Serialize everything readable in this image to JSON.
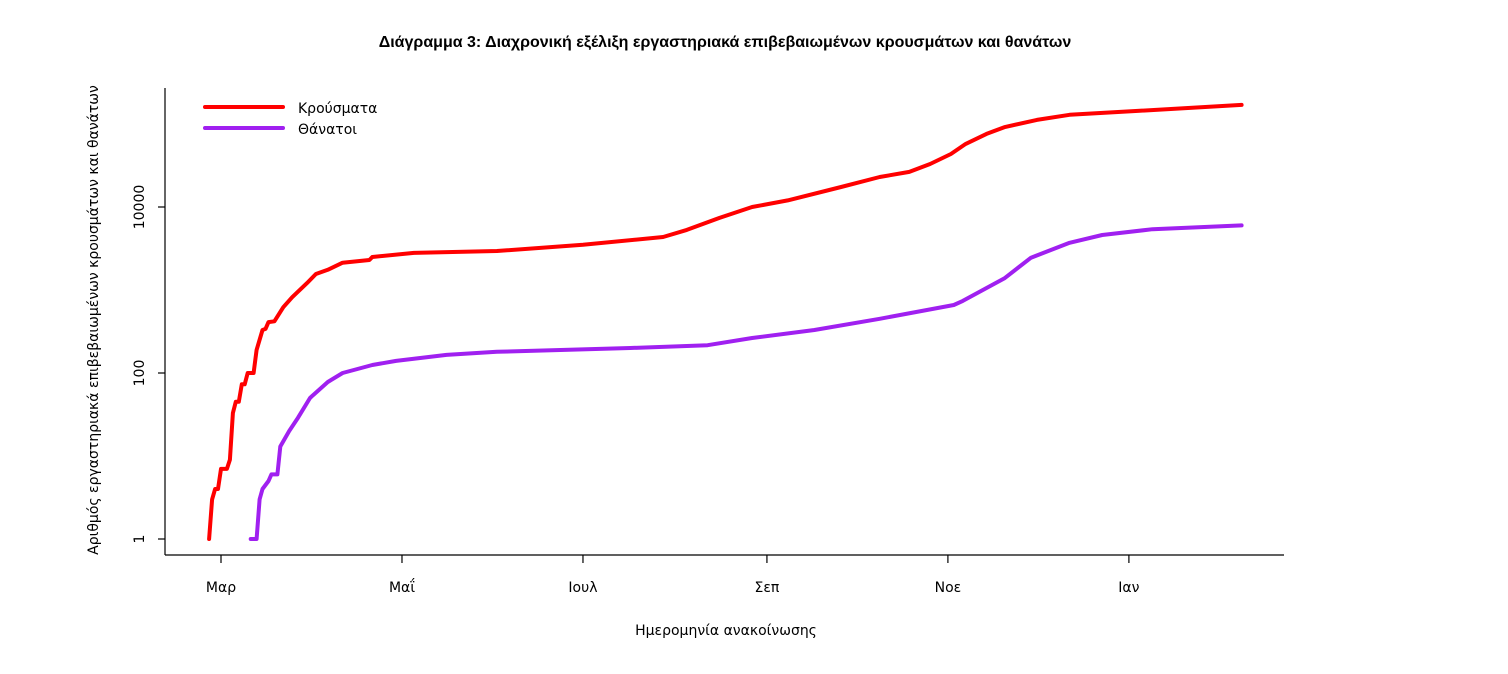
{
  "chart_data": {
    "type": "line",
    "title": "Διάγραμμα 3: Διαχρονική εξέλιξη εργαστηριακά επιβεβαιωμένων κρουσμάτων και θανάτων",
    "xlabel": "Ημερομηνία ανακοίνωσης",
    "ylabel": "Αριθμός εργαστηριακά επιβεβαιωμένων κρουσμάτων και θανάτων",
    "yscale": "log",
    "ylim": [
      0.65,
      270000
    ],
    "xlim": [
      "2020-02-11",
      "2021-02-22"
    ],
    "grid": false,
    "legend_position": "top-left",
    "y_ticks": [
      {
        "value": 1,
        "label": "1"
      },
      {
        "value": 100,
        "label": "100"
      },
      {
        "value": 10000,
        "label": "10000"
      }
    ],
    "x_ticks": [
      {
        "date": "2020-03-01",
        "label": "Μαρ"
      },
      {
        "date": "2020-05-01",
        "label": "Μαΐ"
      },
      {
        "date": "2020-07-01",
        "label": "Ιουλ"
      },
      {
        "date": "2020-09-01",
        "label": "Σεπ"
      },
      {
        "date": "2020-11-01",
        "label": "Νοε"
      },
      {
        "date": "2021-01-01",
        "label": "Ιαν"
      }
    ],
    "series": [
      {
        "name": "Κρούσματα",
        "color": "#ff0000",
        "points": [
          [
            "2020-02-26",
            1
          ],
          [
            "2020-02-27",
            3
          ],
          [
            "2020-02-28",
            4
          ],
          [
            "2020-02-29",
            4
          ],
          [
            "2020-03-01",
            7
          ],
          [
            "2020-03-03",
            7
          ],
          [
            "2020-03-04",
            9
          ],
          [
            "2020-03-05",
            33
          ],
          [
            "2020-03-06",
            45
          ],
          [
            "2020-03-07",
            45
          ],
          [
            "2020-03-08",
            73
          ],
          [
            "2020-03-09",
            73
          ],
          [
            "2020-03-10",
            100
          ],
          [
            "2020-03-12",
            100
          ],
          [
            "2020-03-13",
            190
          ],
          [
            "2020-03-15",
            330
          ],
          [
            "2020-03-16",
            340
          ],
          [
            "2020-03-17",
            410
          ],
          [
            "2020-03-19",
            420
          ],
          [
            "2020-03-22",
            620
          ],
          [
            "2020-03-25",
            820
          ],
          [
            "2020-03-30",
            1210
          ],
          [
            "2020-04-02",
            1560
          ],
          [
            "2020-04-06",
            1750
          ],
          [
            "2020-04-11",
            2130
          ],
          [
            "2020-04-20",
            2300
          ],
          [
            "2020-04-21",
            2500
          ],
          [
            "2020-05-05",
            2800
          ],
          [
            "2020-06-02",
            2950
          ],
          [
            "2020-07-01",
            3500
          ],
          [
            "2020-07-28",
            4350
          ],
          [
            "2020-08-05",
            5300
          ],
          [
            "2020-08-16",
            7400
          ],
          [
            "2020-08-27",
            10000
          ],
          [
            "2020-09-08",
            12000
          ],
          [
            "2020-09-26",
            17400
          ],
          [
            "2020-10-09",
            23000
          ],
          [
            "2020-10-19",
            26500
          ],
          [
            "2020-10-26",
            33000
          ],
          [
            "2020-11-02",
            43500
          ],
          [
            "2020-11-07",
            57500
          ],
          [
            "2020-11-14",
            76000
          ],
          [
            "2020-11-20",
            91500
          ],
          [
            "2020-12-01",
            112000
          ],
          [
            "2020-12-12",
            129000
          ],
          [
            "2021-01-04",
            144000
          ],
          [
            "2021-02-08",
            170000
          ]
        ]
      },
      {
        "name": "Θάνατοι",
        "color": "#a020f0",
        "points": [
          [
            "2020-03-11",
            1
          ],
          [
            "2020-03-13",
            1
          ],
          [
            "2020-03-14",
            3
          ],
          [
            "2020-03-15",
            4
          ],
          [
            "2020-03-17",
            5
          ],
          [
            "2020-03-18",
            6
          ],
          [
            "2020-03-20",
            6
          ],
          [
            "2020-03-21",
            13
          ],
          [
            "2020-03-24",
            20
          ],
          [
            "2020-03-27",
            29
          ],
          [
            "2020-03-31",
            50
          ],
          [
            "2020-04-01",
            54
          ],
          [
            "2020-04-06",
            78
          ],
          [
            "2020-04-11",
            100
          ],
          [
            "2020-04-21",
            125
          ],
          [
            "2020-04-29",
            140
          ],
          [
            "2020-05-16",
            165
          ],
          [
            "2020-06-02",
            180
          ],
          [
            "2020-07-17",
            200
          ],
          [
            "2020-08-12",
            216
          ],
          [
            "2020-08-27",
            264
          ],
          [
            "2020-09-17",
            330
          ],
          [
            "2020-10-09",
            450
          ],
          [
            "2020-11-03",
            660
          ],
          [
            "2020-11-06",
            740
          ],
          [
            "2020-11-20",
            1380
          ],
          [
            "2020-11-29",
            2450
          ],
          [
            "2020-12-12",
            3700
          ],
          [
            "2020-12-23",
            4600
          ],
          [
            "2021-01-09",
            5400
          ],
          [
            "2021-02-08",
            6000
          ]
        ]
      }
    ]
  }
}
